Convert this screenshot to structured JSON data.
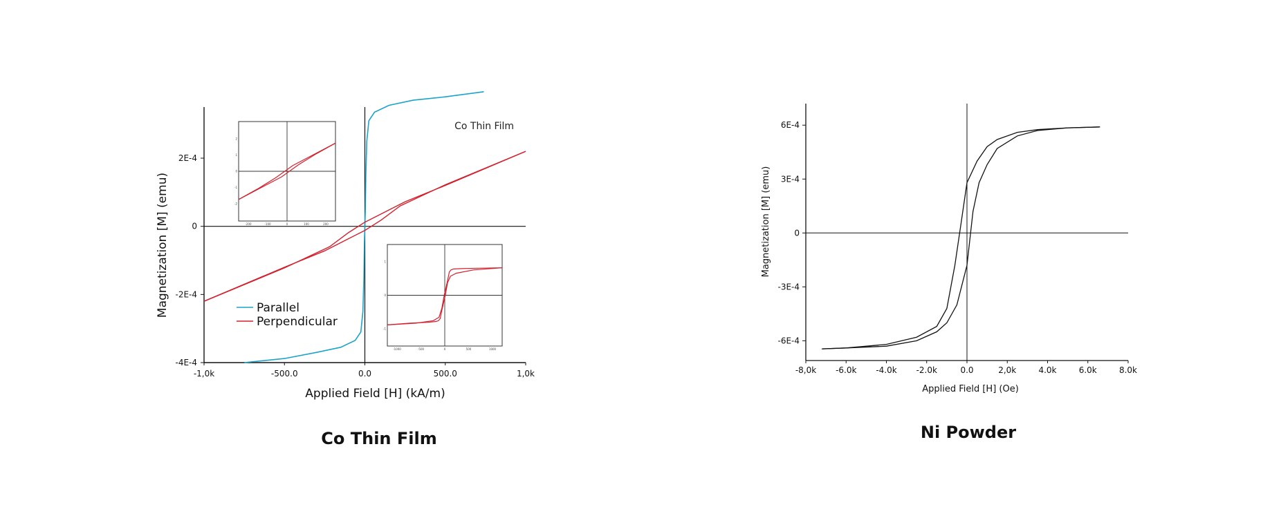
{
  "captions": {
    "left": "Co Thin Film",
    "right": "Ni Powder"
  },
  "chart_data": [
    {
      "type": "line",
      "caption": "Co Thin Film",
      "annotation": "Co Thin Film",
      "xlabel": "Applied Field [H] (kA/m)",
      "ylabel": "Magnetization [M] (emu)",
      "xlim": [
        -1000,
        1000
      ],
      "ylim": [
        -0.0004,
        0.00035
      ],
      "xticks": [
        {
          "value": -1000,
          "label": "-1,0k"
        },
        {
          "value": -500,
          "label": "-500.0"
        },
        {
          "value": 0,
          "label": "0.0"
        },
        {
          "value": 500,
          "label": "500.0"
        },
        {
          "value": 1000,
          "label": "1,0k"
        }
      ],
      "yticks": [
        {
          "value": 0.0002,
          "label": "2E-4"
        },
        {
          "value": 0,
          "label": "0"
        },
        {
          "value": -0.0002,
          "label": "-2E-4"
        },
        {
          "value": -0.0004,
          "label": "-4E-4"
        }
      ],
      "legend": {
        "placement": "bottom-left"
      },
      "grid": false,
      "series": [
        {
          "name": "Parallel",
          "color": "#1aa3c8",
          "x": [
            -750,
            -500,
            -300,
            -150,
            -60,
            -25,
            -12,
            -6,
            -3,
            0,
            3,
            6,
            12,
            25,
            60,
            150,
            300,
            500,
            740
          ],
          "y": [
            -0.0004,
            -0.000388,
            -0.00037,
            -0.000355,
            -0.000335,
            -0.00031,
            -0.00025,
            -0.00015,
            -5e-05,
            0,
            5e-05,
            0.00015,
            0.00025,
            0.00031,
            0.000335,
            0.000355,
            0.00037,
            0.00038,
            0.000395
          ]
        },
        {
          "name": "Perpendicular",
          "color": "#d31f2c",
          "branches": [
            {
              "x": [
                -1000,
                -500,
                -250,
                -100,
                0,
                100,
                220,
                500,
                1000
              ],
              "y": [
                -0.00022,
                -0.00012,
                -7.2e-05,
                -3.6e-05,
                -1.2e-05,
                1.8e-05,
                6e-05,
                0.000122,
                0.00022
              ]
            },
            {
              "x": [
                -1000,
                -500,
                -220,
                -100,
                0,
                100,
                250,
                500,
                1000
              ],
              "y": [
                -0.00022,
                -0.000122,
                -6e-05,
                -1.8e-05,
                1.2e-05,
                3.6e-05,
                7.2e-05,
                0.00012,
                0.00022
              ]
            }
          ]
        }
      ],
      "insets": [
        {
          "position": "top-left",
          "color": "#d31f2c",
          "xlim": [
            -250,
            250
          ],
          "ylim": [
            -3,
            3
          ],
          "xticks": [
            "-200",
            "-100",
            "0",
            "100",
            "200"
          ],
          "yticks": [
            "2",
            "1",
            "0",
            "-1",
            "-2"
          ],
          "branches": [
            {
              "x": [
                -250,
                -120,
                -30,
                60,
                150,
                250
              ],
              "y": [
                -1.7,
                -0.9,
                -0.35,
                0.4,
                1.05,
                1.7
              ]
            },
            {
              "x": [
                -250,
                -150,
                -60,
                30,
                120,
                250
              ],
              "y": [
                -1.7,
                -1.05,
                -0.4,
                0.35,
                0.9,
                1.7
              ]
            }
          ]
        },
        {
          "position": "bottom-right",
          "color": "#d31f2c",
          "xlim": [
            -1000,
            1000
          ],
          "ylim": [
            -1.2,
            1.2
          ],
          "xticks": [
            "-1000",
            "-500",
            "0",
            "500",
            "1000"
          ],
          "yticks": [
            "1",
            "0",
            "-1"
          ],
          "branches": [
            {
              "x": [
                1000,
                500,
                200,
                100,
                50,
                10,
                -50,
                -80,
                -110,
                -150,
                -300,
                -600,
                -1000
              ],
              "y": [
                0.65,
                0.6,
                0.52,
                0.45,
                0.3,
                0,
                -0.35,
                -0.55,
                -0.6,
                -0.62,
                -0.64,
                -0.66,
                -0.7
              ]
            },
            {
              "x": [
                -1000,
                -500,
                -200,
                -100,
                -50,
                -10,
                50,
                80,
                110,
                150,
                300,
                600,
                1000
              ],
              "y": [
                -0.7,
                -0.66,
                -0.6,
                -0.52,
                -0.3,
                0,
                0.35,
                0.55,
                0.6,
                0.62,
                0.63,
                0.64,
                0.65
              ]
            }
          ]
        }
      ]
    },
    {
      "type": "line",
      "caption": "Ni Powder",
      "xlabel": "Applied Field [H] (Oe)",
      "ylabel": "Magnetization [M] (emu)",
      "xlim": [
        -8000,
        8000
      ],
      "ylim": [
        -0.00071,
        0.00072
      ],
      "xticks": [
        {
          "value": -8000,
          "label": "-8,0k"
        },
        {
          "value": -6000,
          "label": "-6.0k"
        },
        {
          "value": -4000,
          "label": "-4.0k"
        },
        {
          "value": -2000,
          "label": "-2.0k"
        },
        {
          "value": 0,
          "label": "0.0"
        },
        {
          "value": 2000,
          "label": "2,0k"
        },
        {
          "value": 4000,
          "label": "4.0k"
        },
        {
          "value": 6000,
          "label": "6.0k"
        },
        {
          "value": 8000,
          "label": "8.0k"
        }
      ],
      "yticks": [
        {
          "value": 0.0006,
          "label": "6E-4"
        },
        {
          "value": 0.0003,
          "label": "3E-4"
        },
        {
          "value": 0,
          "label": "0"
        },
        {
          "value": -0.0003,
          "label": "-3E-4"
        },
        {
          "value": -0.0006,
          "label": "-6E-4"
        }
      ],
      "grid": false,
      "series": [
        {
          "color": "#111111",
          "branches": [
            {
              "x": [
                6600,
                5000,
                3500,
                2500,
                1500,
                1000,
                500,
                0,
                -300,
                -600,
                -1000,
                -1500,
                -2500,
                -4000,
                -6000,
                -7200
              ],
              "y": [
                0.00059,
                0.000585,
                0.000575,
                0.00056,
                0.00052,
                0.00048,
                0.0004,
                0.00028,
                5e-05,
                -0.00018,
                -0.00042,
                -0.00052,
                -0.00058,
                -0.00062,
                -0.00064,
                -0.000645
              ]
            },
            {
              "x": [
                -7200,
                -6000,
                -4000,
                -2500,
                -1500,
                -1000,
                -500,
                0,
                300,
                600,
                1000,
                1500,
                2500,
                3500,
                5000,
                6600
              ],
              "y": [
                -0.000645,
                -0.00064,
                -0.00063,
                -0.0006,
                -0.00055,
                -0.0005,
                -0.0004,
                -0.00018,
                0.00012,
                0.00028,
                0.00038,
                0.00047,
                0.00054,
                0.00057,
                0.000585,
                0.00059
              ]
            }
          ]
        }
      ]
    }
  ]
}
